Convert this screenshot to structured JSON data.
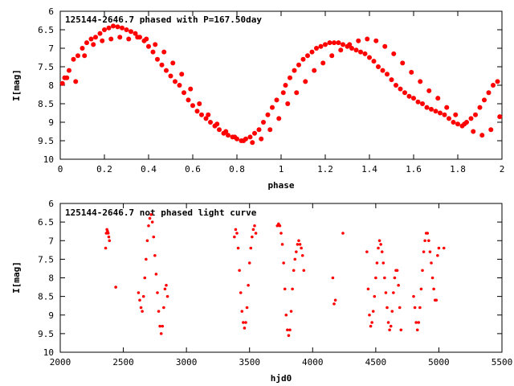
{
  "chart_data": [
    {
      "type": "scatter",
      "title": "125144-2646.7 phased with P=167.50day",
      "xlabel": "phase",
      "ylabel": "I[mag]",
      "xlim": [
        0,
        2
      ],
      "ylim": [
        10,
        6
      ],
      "x_ticks": [
        "0",
        "0.2",
        "0.4",
        "0.6",
        "0.8",
        "1",
        "1.2",
        "1.4",
        "1.6",
        "1.8",
        "2"
      ],
      "y_ticks": [
        "6",
        "6.5",
        "7",
        "7.5",
        "8",
        "8.5",
        "9",
        "9.5",
        "10"
      ],
      "grid": false,
      "color": "#ff0000",
      "series": [
        {
          "x": [
            0.01,
            0.02,
            0.04,
            0.06,
            0.08,
            0.1,
            0.12,
            0.14,
            0.16,
            0.18,
            0.2,
            0.22,
            0.24,
            0.26,
            0.28,
            0.3,
            0.32,
            0.34,
            0.36,
            0.38,
            0.4,
            0.42,
            0.44,
            0.46,
            0.48,
            0.5,
            0.52,
            0.54,
            0.56,
            0.58,
            0.6,
            0.62,
            0.64,
            0.66,
            0.68,
            0.7,
            0.72,
            0.74,
            0.76,
            0.78,
            0.8,
            0.82,
            0.84,
            0.86,
            0.88,
            0.9,
            0.92,
            0.94,
            0.96,
            0.98,
            1.01,
            1.02,
            1.04,
            1.06,
            1.08,
            1.1,
            1.12,
            1.14,
            1.16,
            1.18,
            1.2,
            1.22,
            1.24,
            1.26,
            1.28,
            1.3,
            1.32,
            1.34,
            1.36,
            1.38,
            1.4,
            1.42,
            1.44,
            1.46,
            1.48,
            1.5,
            1.52,
            1.54,
            1.56,
            1.58,
            1.6,
            1.62,
            1.64,
            1.66,
            1.68,
            1.7,
            1.72,
            1.74,
            1.76,
            1.78,
            1.8,
            1.82,
            1.84,
            1.86,
            1.88,
            1.9,
            1.92,
            1.94,
            1.96,
            1.98,
            0.03,
            0.07,
            0.11,
            0.15,
            0.19,
            0.23,
            0.27,
            0.31,
            0.35,
            0.39,
            0.43,
            0.47,
            0.51,
            0.55,
            0.59,
            0.63,
            0.67,
            0.71,
            0.75,
            0.79,
            0.83,
            0.87,
            0.91,
            0.95,
            0.99,
            1.03,
            1.07,
            1.11,
            1.15,
            1.19,
            1.23,
            1.27,
            1.31,
            1.35,
            1.39,
            1.43,
            1.47,
            1.51,
            1.55,
            1.59,
            1.63,
            1.67,
            1.71,
            1.75,
            1.79,
            1.83,
            1.87,
            1.91,
            1.95,
            1.99
          ],
          "y": [
            7.95,
            7.8,
            7.6,
            7.3,
            7.2,
            7.0,
            6.85,
            6.75,
            6.7,
            6.6,
            6.5,
            6.45,
            6.4,
            6.42,
            6.45,
            6.5,
            6.55,
            6.6,
            6.7,
            6.8,
            6.95,
            7.1,
            7.3,
            7.45,
            7.6,
            7.75,
            7.9,
            8.0,
            8.2,
            8.4,
            8.55,
            8.7,
            8.8,
            8.9,
            9.0,
            9.1,
            9.2,
            9.3,
            9.35,
            9.4,
            9.45,
            9.5,
            9.45,
            9.4,
            9.3,
            9.2,
            9.0,
            8.8,
            8.6,
            8.4,
            8.2,
            8.0,
            7.8,
            7.6,
            7.45,
            7.3,
            7.2,
            7.1,
            7.0,
            6.95,
            6.9,
            6.85,
            6.85,
            6.85,
            6.9,
            6.95,
            7.0,
            7.05,
            7.1,
            7.15,
            7.25,
            7.35,
            7.5,
            7.6,
            7.7,
            7.85,
            8.0,
            8.1,
            8.2,
            8.3,
            8.35,
            8.45,
            8.5,
            8.6,
            8.65,
            8.7,
            8.75,
            8.8,
            8.9,
            9.0,
            9.05,
            9.1,
            9.0,
            8.9,
            8.8,
            8.6,
            8.4,
            8.2,
            8.0,
            7.9,
            7.8,
            7.9,
            7.2,
            6.9,
            6.8,
            6.75,
            6.7,
            6.75,
            6.7,
            6.75,
            6.9,
            7.1,
            7.4,
            7.7,
            8.1,
            8.5,
            8.8,
            9.05,
            9.25,
            9.4,
            9.5,
            9.55,
            9.45,
            9.2,
            8.9,
            8.5,
            8.2,
            7.9,
            7.6,
            7.4,
            7.2,
            7.05,
            6.9,
            6.8,
            6.75,
            6.8,
            6.95,
            7.15,
            7.4,
            7.65,
            7.9,
            8.15,
            8.35,
            8.6,
            8.8,
            9.05,
            9.25,
            9.35,
            9.2,
            8.85
          ]
        }
      ]
    },
    {
      "type": "scatter",
      "title": "125144-2646.7 not phased light curve",
      "xlabel": "hjd0",
      "ylabel": "I[mag]",
      "xlim": [
        2000,
        5500
      ],
      "ylim": [
        10,
        6
      ],
      "x_ticks": [
        "2000",
        "2500",
        "3000",
        "3500",
        "4000",
        "4500",
        "5000",
        "5500"
      ],
      "y_ticks": [
        "6",
        "6.5",
        "7",
        "7.5",
        "8",
        "8.5",
        "9",
        "9.5",
        "10"
      ],
      "grid": false,
      "color": "#ff0000",
      "series": [
        {
          "x": [
            2360,
            2365,
            2370,
            2375,
            2380,
            2385,
            2390,
            2440,
            2620,
            2630,
            2640,
            2650,
            2660,
            2670,
            2680,
            2690,
            2700,
            2710,
            2720,
            2730,
            2740,
            2750,
            2760,
            2770,
            2780,
            2790,
            2800,
            2810,
            2820,
            2830,
            2840,
            2850,
            3380,
            3390,
            3400,
            3410,
            3420,
            3430,
            3440,
            3450,
            3460,
            3470,
            3480,
            3490,
            3500,
            3510,
            3520,
            3530,
            3540,
            3550,
            3720,
            3730,
            3740,
            3750,
            3760,
            3770,
            3780,
            3790,
            3800,
            3810,
            3820,
            3830,
            3840,
            3850,
            3860,
            3870,
            3880,
            3890,
            3900,
            3910,
            3920,
            3930,
            4160,
            4170,
            4180,
            4240,
            4430,
            4440,
            4450,
            4460,
            4470,
            4480,
            4490,
            4500,
            4510,
            4520,
            4530,
            4540,
            4550,
            4560,
            4570,
            4580,
            4590,
            4600,
            4610,
            4620,
            4630,
            4640,
            4650,
            4660,
            4670,
            4680,
            4690,
            4700,
            4800,
            4810,
            4820,
            4830,
            4840,
            4850,
            4860,
            4870,
            4880,
            4890,
            4900,
            4910,
            4920,
            4930,
            4940,
            4950,
            4960,
            4970,
            4980,
            4990,
            5000,
            5040
          ],
          "y": [
            7.2,
            6.8,
            6.7,
            6.75,
            6.8,
            6.9,
            7.0,
            8.25,
            8.4,
            8.6,
            8.8,
            8.9,
            8.5,
            8.0,
            7.5,
            7.0,
            6.6,
            6.4,
            6.3,
            6.5,
            6.9,
            7.4,
            7.9,
            8.4,
            8.9,
            9.3,
            9.5,
            9.3,
            8.8,
            8.3,
            8.2,
            8.5,
            6.9,
            6.7,
            6.8,
            7.2,
            7.8,
            8.4,
            8.9,
            9.2,
            9.35,
            9.2,
            8.8,
            8.2,
            7.6,
            7.2,
            6.9,
            6.7,
            6.6,
            6.8,
            6.6,
            6.55,
            6.6,
            6.8,
            7.1,
            7.6,
            8.3,
            9.0,
            9.4,
            9.55,
            9.4,
            8.9,
            8.3,
            7.8,
            7.5,
            7.3,
            7.1,
            7.0,
            7.1,
            7.2,
            7.4,
            7.8,
            8.0,
            8.7,
            8.6,
            6.8,
            7.3,
            8.3,
            9.0,
            9.3,
            9.2,
            8.9,
            8.5,
            8.0,
            7.6,
            7.2,
            7.0,
            7.1,
            7.3,
            7.6,
            8.0,
            8.4,
            8.8,
            9.2,
            9.4,
            9.3,
            8.9,
            8.4,
            8.0,
            7.8,
            7.8,
            8.2,
            8.8,
            9.4,
            8.5,
            8.8,
            9.2,
            9.4,
            9.2,
            8.8,
            8.3,
            7.8,
            7.3,
            7.0,
            6.8,
            6.8,
            7.0,
            7.3,
            7.6,
            8.0,
            8.3,
            8.6,
            8.6,
            7.4,
            7.2,
            7.2
          ]
        }
      ]
    }
  ]
}
